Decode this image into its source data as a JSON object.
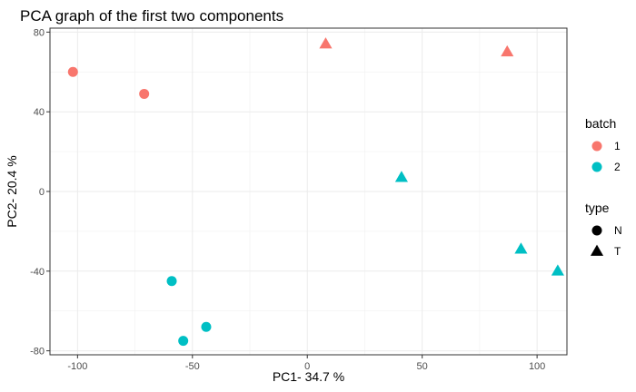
{
  "chart_data": {
    "type": "scatter",
    "title": "PCA graph of the first two components",
    "xlabel": "PC1- 34.7 %",
    "ylabel": "PC2- 20.4 %",
    "xlim": [
      -112,
      113
    ],
    "ylim": [
      -82,
      82
    ],
    "xticks": [
      -100,
      -50,
      0,
      50,
      100
    ],
    "yticks": [
      -80,
      -40,
      0,
      40,
      80
    ],
    "grid": true,
    "legend_placement": "right",
    "colors": {
      "1": "#F8766D",
      "2": "#00BFC4"
    },
    "points": [
      {
        "x": -102,
        "y": 60,
        "batch": "1",
        "type": "N"
      },
      {
        "x": -71,
        "y": 49,
        "batch": "1",
        "type": "N"
      },
      {
        "x": 8,
        "y": 74,
        "batch": "1",
        "type": "T"
      },
      {
        "x": 87,
        "y": 70,
        "batch": "1",
        "type": "T"
      },
      {
        "x": 41,
        "y": 7,
        "batch": "2",
        "type": "T"
      },
      {
        "x": 93,
        "y": -29,
        "batch": "2",
        "type": "T"
      },
      {
        "x": 109,
        "y": -40,
        "batch": "2",
        "type": "T"
      },
      {
        "x": -59,
        "y": -45,
        "batch": "2",
        "type": "N"
      },
      {
        "x": -44,
        "y": -68,
        "batch": "2",
        "type": "N"
      },
      {
        "x": -54,
        "y": -75,
        "batch": "2",
        "type": "N"
      }
    ],
    "legends": [
      {
        "title": "batch",
        "entries": [
          {
            "label": "1",
            "shape": "circle",
            "color": "#F8766D"
          },
          {
            "label": "2",
            "shape": "circle",
            "color": "#00BFC4"
          }
        ]
      },
      {
        "title": "type",
        "entries": [
          {
            "label": "N",
            "shape": "circle",
            "color": "#000000"
          },
          {
            "label": "T",
            "shape": "triangle",
            "color": "#000000"
          }
        ]
      }
    ]
  }
}
